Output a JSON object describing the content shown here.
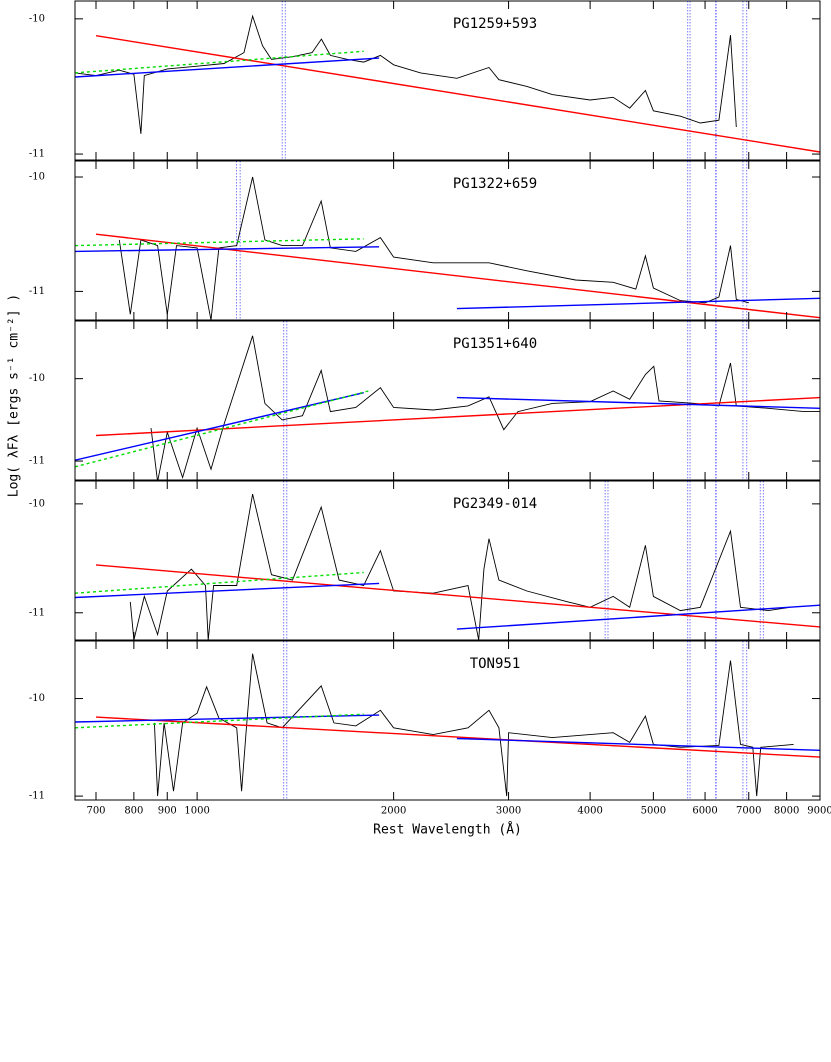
{
  "chart_data": [
    {
      "type": "line",
      "title": "PG1259+593",
      "log_x": true,
      "xlim": [
        650,
        9000
      ],
      "xticks": [
        700,
        800,
        900,
        1000,
        2000,
        3000,
        4000,
        5000,
        6000,
        7000,
        8000,
        9000
      ],
      "ylim": [
        -11.044,
        -9.868
      ],
      "yticks": [
        -10,
        -11
      ],
      "vlines": [
        1350,
        1365,
        5643,
        5690,
        6227,
        6240,
        6858,
        6950
      ],
      "vline_color": "#7a7aff",
      "series": [
        {
          "color": "#000000",
          "x": [
            650,
            700,
            760,
            800,
            820,
            830,
            900,
            1000,
            1100,
            1180,
            1216,
            1260,
            1300,
            1400,
            1500,
            1550,
            1600,
            1700,
            1800,
            1909,
            2000,
            2200,
            2500,
            2800,
            2900,
            3200,
            3500,
            4000,
            4340,
            4600,
            4861,
            5000,
            5500,
            5900,
            6300,
            6563,
            6650,
            6700
          ],
          "values": [
            -10.4,
            -10.42,
            -10.38,
            -10.41,
            -10.85,
            -10.42,
            -10.37,
            -10.35,
            -10.33,
            -10.25,
            -9.98,
            -10.2,
            -10.3,
            -10.28,
            -10.25,
            -10.15,
            -10.27,
            -10.3,
            -10.32,
            -10.27,
            -10.34,
            -10.4,
            -10.44,
            -10.36,
            -10.45,
            -10.5,
            -10.56,
            -10.6,
            -10.58,
            -10.66,
            -10.53,
            -10.68,
            -10.72,
            -10.77,
            -10.75,
            -10.12,
            -10.55,
            -10.8
          ]
        },
        {
          "color": "#ff0000",
          "x": [
            700,
            9000
          ],
          "values": [
            -10.125,
            -10.985
          ]
        },
        {
          "color": "#0000ff",
          "x": [
            650,
            1900
          ],
          "values": [
            -10.43,
            -10.29
          ]
        },
        {
          "color": "#00dd00",
          "dash": true,
          "x": [
            650,
            1800
          ],
          "values": [
            -10.4,
            -10.24
          ]
        }
      ]
    },
    {
      "type": "line",
      "title": "PG1322+659",
      "log_x": true,
      "xlim": [
        650,
        9000
      ],
      "xticks": [
        700,
        800,
        900,
        1000,
        2000,
        3000,
        4000,
        5000,
        6000,
        7000,
        8000,
        9000
      ],
      "ylim": [
        -11.25,
        -9.86
      ],
      "yticks": [
        -10,
        -11
      ],
      "vlines": [
        1149,
        1164,
        5643,
        5690,
        6227,
        6240,
        6858,
        6950
      ],
      "vline_color": "#7a7aff",
      "series": [
        {
          "color": "#000000",
          "x": [
            760,
            790,
            820,
            870,
            900,
            930,
            1000,
            1050,
            1080,
            1150,
            1216,
            1270,
            1350,
            1450,
            1549,
            1600,
            1750,
            1909,
            2000,
            2300,
            2800,
            3200,
            3800,
            4340,
            4700,
            4861,
            5000,
            5500,
            6000,
            6300,
            6563,
            6700,
            7000
          ],
          "values": [
            -10.55,
            -11.2,
            -10.55,
            -10.6,
            -11.2,
            -10.6,
            -10.62,
            -11.25,
            -10.62,
            -10.6,
            -10.0,
            -10.55,
            -10.6,
            -10.6,
            -10.21,
            -10.62,
            -10.65,
            -10.53,
            -10.7,
            -10.75,
            -10.75,
            -10.82,
            -10.9,
            -10.92,
            -10.98,
            -10.69,
            -10.97,
            -11.08,
            -11.1,
            -11.05,
            -10.6,
            -11.07,
            -11.1
          ]
        },
        {
          "color": "#ff0000",
          "x": [
            700,
            9000
          ],
          "values": [
            -10.5,
            -11.23
          ]
        },
        {
          "color": "#0000ff",
          "x": [
            650,
            1900
          ],
          "values": [
            -10.65,
            -10.61
          ]
        },
        {
          "color": "#0000ff",
          "x": [
            2500,
            9000
          ],
          "values": [
            -11.15,
            -11.06
          ]
        },
        {
          "color": "#00dd00",
          "dash": true,
          "x": [
            650,
            1800
          ],
          "values": [
            -10.6,
            -10.54
          ]
        }
      ]
    },
    {
      "type": "line",
      "title": "PG1351+640",
      "log_x": true,
      "ylabel": "Log( λFλ [ergs s⁻¹ cm⁻²] )",
      "xlim": [
        650,
        9000
      ],
      "xticks": [
        700,
        800,
        900,
        1000,
        2000,
        3000,
        4000,
        5000,
        6000,
        7000,
        8000,
        9000
      ],
      "ylim": [
        -11.23,
        -9.3
      ],
      "yticks": [
        -10,
        -11
      ],
      "vlines": [
        1357,
        1372,
        5643,
        5690,
        6227,
        6240,
        6858,
        6950
      ],
      "vline_color": "#7a7aff",
      "series": [
        {
          "color": "#000000",
          "x": [
            850,
            870,
            900,
            950,
            1000,
            1050,
            1100,
            1216,
            1270,
            1350,
            1450,
            1549,
            1600,
            1750,
            1909,
            2000,
            2300,
            2600,
            2800,
            2950,
            3100,
            3500,
            4000,
            4340,
            4600,
            4861,
            5007,
            5100,
            5800,
            6300,
            6563,
            6700,
            7500,
            8500,
            9000
          ],
          "values": [
            -10.6,
            -11.25,
            -10.65,
            -11.2,
            -10.6,
            -11.1,
            -10.55,
            -9.48,
            -10.3,
            -10.5,
            -10.45,
            -9.9,
            -10.4,
            -10.35,
            -10.11,
            -10.35,
            -10.38,
            -10.33,
            -10.22,
            -10.62,
            -10.4,
            -10.3,
            -10.28,
            -10.15,
            -10.25,
            -9.95,
            -9.85,
            -10.27,
            -10.3,
            -10.33,
            -9.81,
            -10.33,
            -10.36,
            -10.4,
            -10.4
          ]
        },
        {
          "color": "#ff0000",
          "x": [
            700,
            9000
          ],
          "values": [
            -10.69,
            -10.23
          ]
        },
        {
          "color": "#0000ff",
          "x": [
            650,
            1800
          ],
          "values": [
            -10.99,
            -10.17
          ]
        },
        {
          "color": "#0000ff",
          "x": [
            2500,
            9000
          ],
          "values": [
            -10.23,
            -10.36
          ]
        },
        {
          "color": "#00dd00",
          "dash": true,
          "x": [
            650,
            1850
          ],
          "values": [
            -11.07,
            -10.14
          ]
        }
      ]
    },
    {
      "type": "line",
      "title": "PG2349-014",
      "log_x": true,
      "xlim": [
        650,
        9000
      ],
      "xticks": [
        700,
        800,
        900,
        1000,
        2000,
        3000,
        4000,
        5000,
        6000,
        7000,
        8000,
        9000
      ],
      "ylim": [
        -11.25,
        -9.79
      ],
      "yticks": [
        -10,
        -11
      ],
      "vlines": [
        1357,
        1372,
        4218,
        4260,
        5643,
        5690,
        6227,
        6240,
        7290,
        7370
      ],
      "vline_color": "#7a7aff",
      "series": [
        {
          "color": "#000000",
          "x": [
            790,
            800,
            830,
            870,
            900,
            980,
            1030,
            1040,
            1060,
            1150,
            1216,
            1300,
            1400,
            1549,
            1650,
            1800,
            1909,
            2000,
            2300,
            2600,
            2700,
            2750,
            2800,
            2900,
            3200,
            3700,
            4000,
            4340,
            4600,
            4861,
            5000,
            5500,
            5900,
            6563,
            6800,
            7500,
            8100
          ],
          "values": [
            -10.9,
            -11.25,
            -10.85,
            -11.2,
            -10.8,
            -10.6,
            -10.75,
            -11.25,
            -10.75,
            -10.75,
            -9.91,
            -10.65,
            -10.7,
            -10.03,
            -10.7,
            -10.75,
            -10.43,
            -10.8,
            -10.82,
            -10.75,
            -11.25,
            -10.6,
            -10.32,
            -10.7,
            -10.8,
            -10.9,
            -10.95,
            -10.85,
            -10.95,
            -10.38,
            -10.85,
            -10.98,
            -10.95,
            -10.25,
            -10.95,
            -10.98,
            -10.95
          ]
        },
        {
          "color": "#ff0000",
          "x": [
            700,
            9000
          ],
          "values": [
            -10.56,
            -11.13
          ]
        },
        {
          "color": "#0000ff",
          "x": [
            650,
            1900
          ],
          "values": [
            -10.86,
            -10.73
          ]
        },
        {
          "color": "#0000ff",
          "x": [
            2500,
            9000
          ],
          "values": [
            -11.15,
            -10.93
          ]
        },
        {
          "color": "#00dd00",
          "dash": true,
          "x": [
            650,
            1800
          ],
          "values": [
            -10.82,
            -10.63
          ]
        }
      ]
    },
    {
      "type": "line",
      "title": "TON951",
      "log_x": true,
      "xlabel": "Rest Wavelength (Å)",
      "xlim": [
        650,
        9000
      ],
      "xticks": [
        700,
        800,
        900,
        1000,
        2000,
        3000,
        4000,
        5000,
        6000,
        7000,
        8000,
        9000
      ],
      "ylim": [
        -11.04,
        -9.41
      ],
      "yticks": [
        -10,
        -11
      ],
      "vlines": [
        1357,
        1372,
        5643,
        5690,
        6227,
        6240,
        6858,
        6950
      ],
      "vline_color": "#7a7aff",
      "series": [
        {
          "color": "#000000",
          "x": [
            860,
            870,
            890,
            920,
            950,
            1000,
            1034,
            1080,
            1150,
            1170,
            1190,
            1216,
            1280,
            1350,
            1549,
            1620,
            1750,
            1909,
            2000,
            2300,
            2600,
            2800,
            2900,
            2980,
            3000,
            3500,
            4340,
            4600,
            4861,
            5000,
            5500,
            6300,
            6563,
            6800,
            7100,
            7200,
            7300,
            8200
          ],
          "values": [
            -10.25,
            -11.0,
            -10.25,
            -10.95,
            -10.25,
            -10.15,
            -9.88,
            -10.2,
            -10.3,
            -10.95,
            -10.3,
            -9.54,
            -10.25,
            -10.3,
            -9.87,
            -10.25,
            -10.28,
            -10.12,
            -10.3,
            -10.37,
            -10.3,
            -10.12,
            -10.3,
            -11.0,
            -10.35,
            -10.4,
            -10.35,
            -10.45,
            -10.18,
            -10.47,
            -10.5,
            -10.48,
            -9.61,
            -10.47,
            -10.5,
            -11.0,
            -10.5,
            -10.47
          ]
        },
        {
          "color": "#ff0000",
          "x": [
            700,
            9000
          ],
          "values": [
            -10.19,
            -10.6
          ]
        },
        {
          "color": "#0000ff",
          "x": [
            650,
            1900
          ],
          "values": [
            -10.24,
            -10.17
          ]
        },
        {
          "color": "#0000ff",
          "x": [
            2500,
            9000
          ],
          "values": [
            -10.41,
            -10.53
          ]
        },
        {
          "color": "#00dd00",
          "dash": true,
          "x": [
            650,
            1800
          ],
          "values": [
            -10.3,
            -10.16
          ]
        }
      ]
    }
  ]
}
